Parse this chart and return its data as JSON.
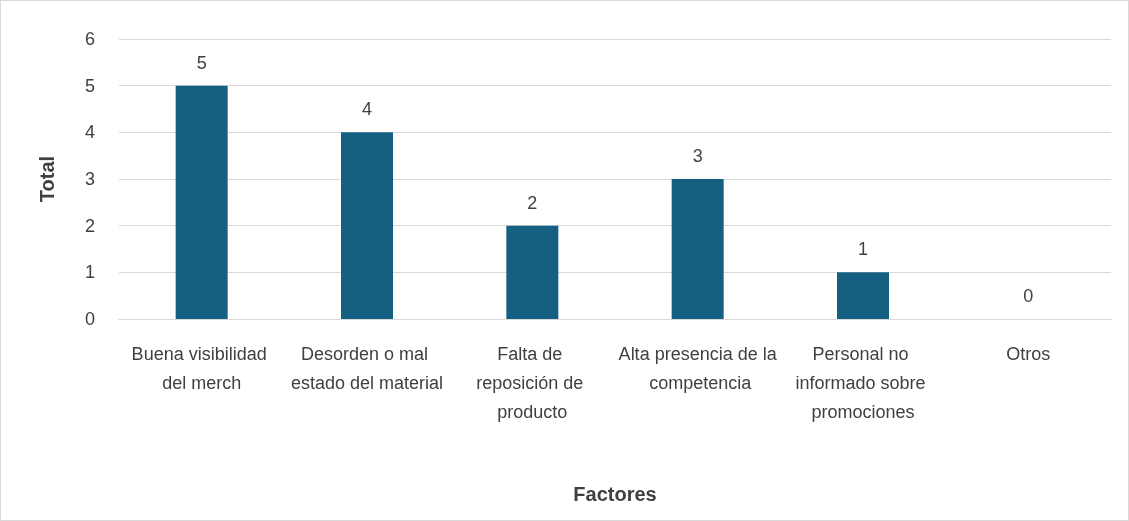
{
  "chart_data": {
    "type": "bar",
    "xlabel": "Factores",
    "ylabel": "Total",
    "categories": [
      "Buena visibilidad del merch",
      "Desorden o mal estado del material",
      "Falta de reposición de producto",
      "Alta presencia de la competencia",
      "Personal no informado sobre promociones",
      "Otros"
    ],
    "values": [
      5,
      4,
      2,
      3,
      1,
      0
    ],
    "color": "#155f82",
    "ylim": [
      0,
      6
    ],
    "yticks": [
      0,
      1,
      2,
      3,
      4,
      5,
      6
    ],
    "grid": "y",
    "data_labels": true
  }
}
